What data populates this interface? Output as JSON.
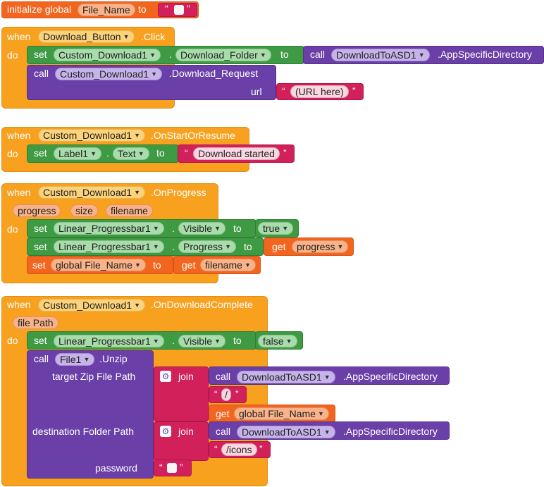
{
  "blocks": {
    "init": {
      "label": "initialize global",
      "var": "File_Name",
      "to": "to"
    },
    "download_click": {
      "when": "when",
      "component": "Download_Button",
      "event": ".Click",
      "do": "do",
      "set": "set",
      "target": "Custom_Download1",
      "property": "Download_Folder",
      "to": "to",
      "call": "call",
      "asd": "DownloadToASD1",
      "asd_method": ".AppSpecificDirectory",
      "call2": "call",
      "target2": "Custom_Download1",
      "method": ".Download_Request",
      "url_label": "url",
      "url_value": "(URL here)"
    },
    "start_or_resume": {
      "when": "when",
      "component": "Custom_Download1",
      "event": ".OnStartOrResume",
      "do": "do",
      "set": "set",
      "target": "Label1",
      "property": "Text",
      "to": "to",
      "text": "Download started"
    },
    "progress": {
      "when": "when",
      "component": "Custom_Download1",
      "event": ".OnProgress",
      "do": "do",
      "params": [
        "progress",
        "size",
        "filename"
      ],
      "row1": {
        "set": "set",
        "target": "Linear_Progressbar1",
        "property": "Visible",
        "to": "to",
        "value": "true"
      },
      "row2": {
        "set": "set",
        "target": "Linear_Progressbar1",
        "property": "Progress",
        "to": "to",
        "get": "get",
        "var": "progress"
      },
      "row3": {
        "set": "set",
        "var": "global File_Name",
        "to": "to",
        "get": "get",
        "getvar": "filename"
      }
    },
    "download_complete": {
      "when": "when",
      "component": "Custom_Download1",
      "event": ".OnDownloadComplete",
      "do": "do",
      "param": "file Path",
      "row1": {
        "set": "set",
        "target": "Linear_Progressbar1",
        "property": "Visible",
        "to": "to",
        "value": "false"
      },
      "call": "call",
      "file": "File1",
      "method": ".Unzip",
      "zip_label": "target Zip File Path",
      "join": "join",
      "call_a": "call",
      "asd_a": "DownloadToASD1",
      "asd_method_a": ".AppSpecificDirectory",
      "slash": "/",
      "get": "get",
      "getvar": "global File_Name",
      "dest_label": "destination Folder Path",
      "join2": "join",
      "call_b": "call",
      "asd_b": "DownloadToASD1",
      "asd_method_b": ".AppSpecificDirectory",
      "icons": "/icons",
      "password_label": "password"
    }
  }
}
